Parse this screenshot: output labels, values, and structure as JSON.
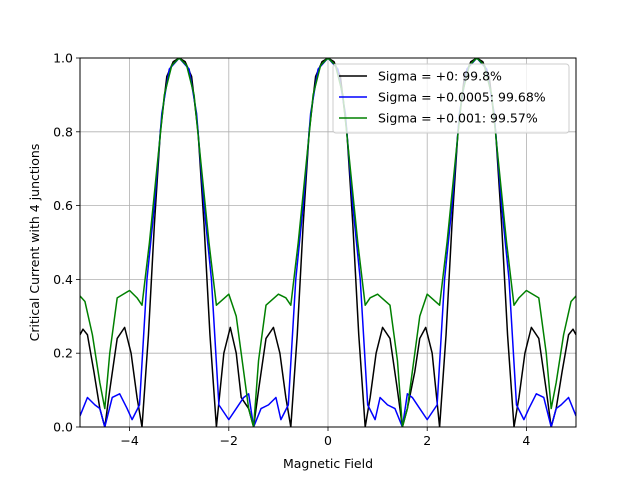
{
  "chart_data": {
    "type": "line",
    "title": "",
    "xlabel": "Magnetic Field",
    "ylabel": "Critical Current with 4 junctions",
    "xlim": [
      -5,
      5
    ],
    "ylim": [
      0,
      1
    ],
    "x_ticks": [
      -4,
      -2,
      0,
      2,
      4
    ],
    "x_tick_labels": [
      "−4",
      "−2",
      "0",
      "2",
      "4"
    ],
    "y_ticks": [
      0,
      0.2,
      0.4,
      0.6,
      0.8,
      1.0
    ],
    "y_tick_labels": [
      "0.0",
      "0.2",
      "0.4",
      "0.6",
      "0.8",
      "1.0"
    ],
    "grid": true,
    "legend_position": "top-right",
    "series": [
      {
        "name": "Sigma = +0: 99.8%",
        "color": "#000000",
        "sigma": 0,
        "x": [
          -5.0,
          -4.94,
          -4.85,
          -4.72,
          -4.6,
          -4.5,
          -4.4,
          -4.25,
          -4.1,
          -3.97,
          -3.85,
          -3.75,
          -3.62,
          -3.5,
          -3.38,
          -3.25,
          -3.12,
          -3.0,
          -2.88,
          -2.75,
          -2.62,
          -2.5,
          -2.38,
          -2.25,
          -2.1,
          -1.97,
          -1.85,
          -1.75,
          -1.6,
          -1.5,
          -1.4,
          -1.25,
          -1.1,
          -0.97,
          -0.85,
          -0.75,
          -0.62,
          -0.5,
          -0.38,
          -0.25,
          -0.12,
          0.0,
          0.12,
          0.25,
          0.38,
          0.5,
          0.62,
          0.75,
          0.85,
          0.97,
          1.1,
          1.25,
          1.4,
          1.5,
          1.6,
          1.75,
          1.85,
          1.97,
          2.1,
          2.25,
          2.38,
          2.5,
          2.62,
          2.75,
          2.88,
          3.0,
          3.12,
          3.25,
          3.38,
          3.5,
          3.62,
          3.75,
          3.85,
          3.97,
          4.1,
          4.25,
          4.4,
          4.5,
          4.6,
          4.72,
          4.85,
          4.94,
          5.0
        ],
        "y": [
          0.25,
          0.265,
          0.25,
          0.15,
          0.05,
          0.0,
          0.1,
          0.24,
          0.27,
          0.2,
          0.08,
          0.0,
          0.25,
          0.55,
          0.8,
          0.95,
          0.99,
          1.0,
          0.99,
          0.95,
          0.8,
          0.55,
          0.25,
          0.0,
          0.2,
          0.27,
          0.2,
          0.08,
          0.05,
          0.0,
          0.1,
          0.24,
          0.27,
          0.2,
          0.08,
          0.0,
          0.25,
          0.55,
          0.8,
          0.95,
          0.99,
          1.0,
          0.99,
          0.95,
          0.8,
          0.55,
          0.25,
          0.0,
          0.08,
          0.2,
          0.27,
          0.24,
          0.1,
          0.0,
          0.05,
          0.15,
          0.24,
          0.27,
          0.2,
          0.0,
          0.25,
          0.55,
          0.8,
          0.95,
          0.99,
          1.0,
          0.99,
          0.95,
          0.8,
          0.55,
          0.25,
          0.0,
          0.08,
          0.2,
          0.27,
          0.24,
          0.1,
          0.0,
          0.05,
          0.15,
          0.25,
          0.265,
          0.25
        ]
      },
      {
        "name": "Sigma = +0.0005: 99.68%",
        "color": "#0000ff",
        "sigma": 0.0005,
        "x": [
          -5.0,
          -4.85,
          -4.7,
          -4.6,
          -4.5,
          -4.35,
          -4.2,
          -4.05,
          -3.95,
          -3.8,
          -3.65,
          -3.5,
          -3.35,
          -3.2,
          -3.0,
          -2.8,
          -2.65,
          -2.5,
          -2.35,
          -2.2,
          -2.0,
          -1.85,
          -1.7,
          -1.6,
          -1.5,
          -1.35,
          -1.2,
          -1.05,
          -0.95,
          -0.8,
          -0.65,
          -0.5,
          -0.35,
          -0.2,
          0.0,
          0.2,
          0.35,
          0.5,
          0.65,
          0.8,
          0.95,
          1.05,
          1.2,
          1.35,
          1.5,
          1.6,
          1.7,
          1.85,
          2.0,
          2.2,
          2.35,
          2.5,
          2.65,
          2.8,
          3.0,
          3.2,
          3.35,
          3.5,
          3.65,
          3.8,
          3.95,
          4.05,
          4.2,
          4.35,
          4.5,
          4.6,
          4.7,
          4.85,
          5.0
        ],
        "y": [
          0.03,
          0.08,
          0.06,
          0.05,
          0.0,
          0.08,
          0.09,
          0.05,
          0.02,
          0.06,
          0.4,
          0.6,
          0.85,
          0.97,
          1.0,
          0.97,
          0.85,
          0.6,
          0.4,
          0.06,
          0.02,
          0.05,
          0.08,
          0.09,
          0.0,
          0.05,
          0.06,
          0.08,
          0.02,
          0.06,
          0.4,
          0.6,
          0.85,
          0.97,
          1.0,
          0.97,
          0.85,
          0.6,
          0.4,
          0.06,
          0.02,
          0.08,
          0.06,
          0.05,
          0.0,
          0.09,
          0.08,
          0.05,
          0.02,
          0.06,
          0.4,
          0.6,
          0.85,
          0.97,
          1.0,
          0.97,
          0.85,
          0.6,
          0.4,
          0.06,
          0.02,
          0.05,
          0.09,
          0.08,
          0.0,
          0.05,
          0.06,
          0.08,
          0.03
        ]
      },
      {
        "name": "Sigma = +0.001: 99.57%",
        "color": "#008000",
        "sigma": 0.001,
        "x": [
          -5.0,
          -4.9,
          -4.75,
          -4.6,
          -4.5,
          -4.4,
          -4.25,
          -4.0,
          -3.85,
          -3.75,
          -3.6,
          -3.45,
          -3.3,
          -3.15,
          -3.0,
          -2.85,
          -2.7,
          -2.55,
          -2.4,
          -2.25,
          -2.0,
          -1.85,
          -1.75,
          -1.6,
          -1.5,
          -1.4,
          -1.25,
          -1.0,
          -0.85,
          -0.75,
          -0.6,
          -0.45,
          -0.3,
          -0.15,
          0.0,
          0.15,
          0.3,
          0.45,
          0.6,
          0.75,
          0.85,
          1.0,
          1.25,
          1.4,
          1.5,
          1.6,
          1.75,
          1.85,
          2.0,
          2.25,
          2.4,
          2.55,
          2.7,
          2.85,
          3.0,
          3.15,
          3.3,
          3.45,
          3.6,
          3.75,
          3.85,
          4.0,
          4.25,
          4.4,
          4.5,
          4.6,
          4.75,
          4.9,
          5.0
        ],
        "y": [
          0.355,
          0.34,
          0.25,
          0.12,
          0.05,
          0.2,
          0.35,
          0.37,
          0.35,
          0.33,
          0.5,
          0.7,
          0.9,
          0.98,
          1.0,
          0.98,
          0.9,
          0.7,
          0.5,
          0.33,
          0.36,
          0.3,
          0.2,
          0.05,
          0.0,
          0.18,
          0.33,
          0.36,
          0.35,
          0.33,
          0.5,
          0.7,
          0.9,
          0.98,
          1.0,
          0.98,
          0.9,
          0.7,
          0.5,
          0.33,
          0.35,
          0.36,
          0.33,
          0.18,
          0.0,
          0.05,
          0.2,
          0.3,
          0.36,
          0.33,
          0.5,
          0.7,
          0.9,
          0.98,
          1.0,
          0.98,
          0.9,
          0.7,
          0.5,
          0.33,
          0.35,
          0.37,
          0.35,
          0.2,
          0.05,
          0.12,
          0.25,
          0.34,
          0.355
        ]
      }
    ]
  }
}
